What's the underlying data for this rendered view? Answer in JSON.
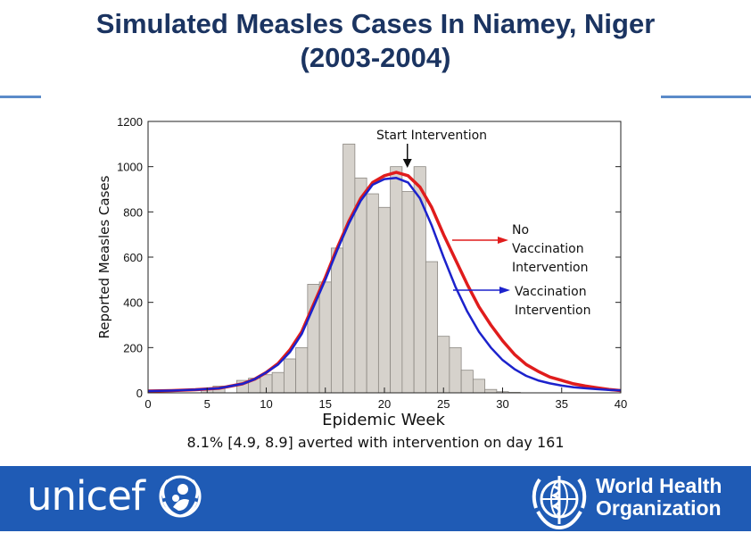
{
  "slide": {
    "title_line1": "Simulated Measles Cases In Niamey, Niger",
    "title_line2": "(2003-2004)",
    "caption": "8.1% [4.9, 8.9] averted with intervention on day 161",
    "colors": {
      "title": "#1b3461",
      "footer": "#1f5bb5",
      "bar": "#d6d2cc",
      "no_vacc": "#e01c1c",
      "vacc": "#1c22cc"
    }
  },
  "logos": {
    "unicef": {
      "text": "unicef",
      "icon": "unicef-mother-child-emblem"
    },
    "who": {
      "text_line1": "World Health",
      "text_line2": "Organization",
      "icon": "who-globe-emblem"
    }
  },
  "chart_data": {
    "type": "bar",
    "xlabel": "Epidemic Week",
    "ylabel": "Reported Measles Cases",
    "xlim": [
      0,
      40
    ],
    "ylim": [
      0,
      1200
    ],
    "xticks": [
      0,
      5,
      10,
      15,
      20,
      25,
      30,
      35,
      40
    ],
    "yticks": [
      0,
      200,
      400,
      600,
      800,
      1000,
      1200
    ],
    "bars": {
      "weeks": [
        5,
        6,
        8,
        9,
        10,
        11,
        12,
        13,
        14,
        15,
        16,
        17,
        18,
        19,
        20,
        21,
        22,
        23,
        24,
        25,
        26,
        27,
        28,
        29,
        30,
        31
      ],
      "values": [
        20,
        30,
        55,
        65,
        80,
        90,
        150,
        200,
        480,
        490,
        640,
        1100,
        950,
        880,
        820,
        1000,
        890,
        1000,
        580,
        250,
        200,
        100,
        60,
        15,
        5,
        2
      ]
    },
    "series": [
      {
        "name": "No Vaccination Intervention",
        "x": [
          0,
          2,
          4,
          6,
          8,
          9,
          10,
          11,
          12,
          13,
          14,
          15,
          16,
          17,
          18,
          19,
          20,
          21,
          22,
          23,
          24,
          25,
          26,
          27,
          28,
          29,
          30,
          31,
          32,
          33,
          34,
          35,
          36,
          37,
          38,
          39,
          40
        ],
        "y": [
          8,
          10,
          14,
          20,
          40,
          60,
          90,
          130,
          190,
          270,
          390,
          510,
          640,
          760,
          860,
          930,
          960,
          975,
          960,
          910,
          820,
          700,
          590,
          480,
          380,
          300,
          230,
          170,
          125,
          95,
          70,
          55,
          40,
          30,
          22,
          15,
          10
        ]
      },
      {
        "name": "Vaccination Intervention",
        "x": [
          0,
          2,
          4,
          6,
          8,
          9,
          10,
          11,
          12,
          13,
          14,
          15,
          16,
          17,
          18,
          19,
          20,
          21,
          22,
          23,
          24,
          25,
          26,
          27,
          28,
          29,
          30,
          31,
          32,
          33,
          34,
          35,
          36,
          37,
          38,
          39,
          40
        ],
        "y": [
          8,
          10,
          14,
          20,
          40,
          60,
          90,
          125,
          180,
          260,
          380,
          500,
          630,
          750,
          850,
          920,
          945,
          950,
          930,
          860,
          740,
          600,
          470,
          360,
          270,
          200,
          145,
          105,
          75,
          55,
          42,
          32,
          25,
          20,
          16,
          13,
          11
        ]
      }
    ],
    "annotations": {
      "start_intervention": {
        "text": "Start Intervention",
        "week": 23
      },
      "no_vacc_label": [
        "No",
        "Vaccination",
        "Intervention"
      ],
      "vacc_label": [
        "Vaccination",
        "Intervention"
      ]
    }
  }
}
